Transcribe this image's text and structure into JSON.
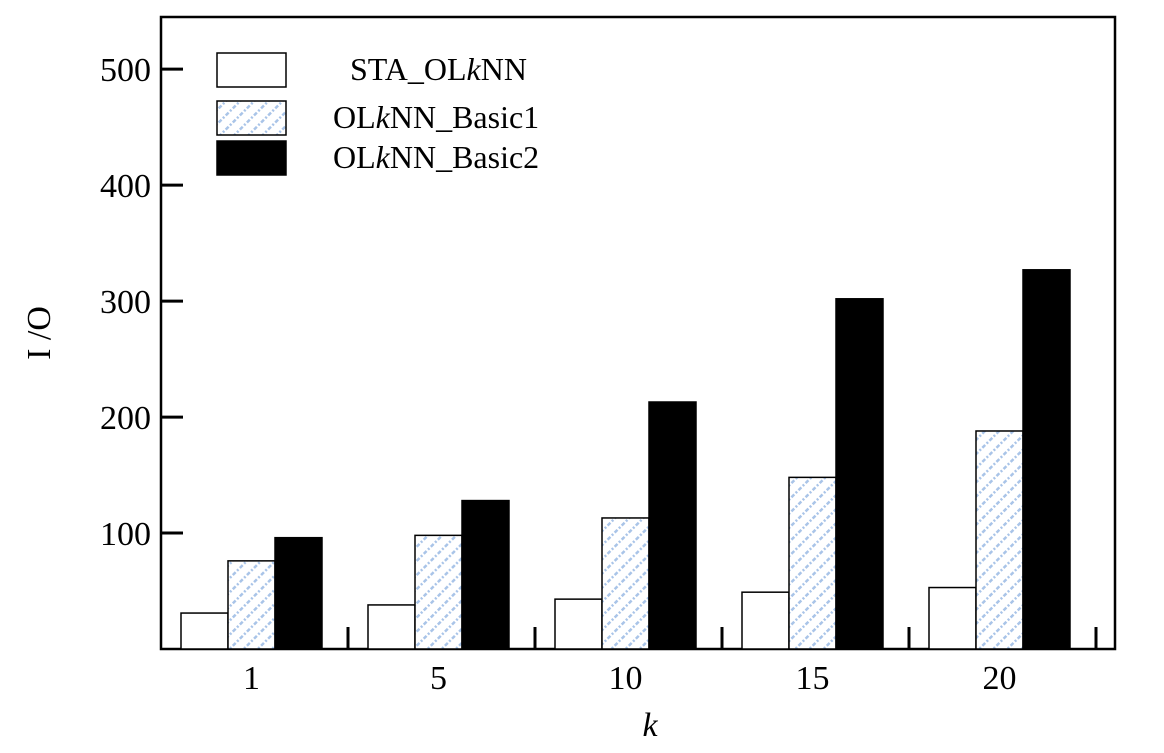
{
  "chart_data": {
    "type": "bar",
    "title": "",
    "xlabel": "k",
    "ylabel": "I /O",
    "categories": [
      "1",
      "5",
      "10",
      "15",
      "20"
    ],
    "yticks": [
      100,
      200,
      300,
      400,
      500
    ],
    "ylim": [
      0,
      545
    ],
    "grid": false,
    "legend_position": "top-left",
    "series": [
      {
        "name": "STA_OLkNN",
        "legend_parts": [
          "STA_OL",
          "k",
          "NN"
        ],
        "pattern": "white",
        "values": [
          31,
          38,
          43,
          49,
          53
        ]
      },
      {
        "name": "OLkNN_Basic1",
        "legend_parts": [
          "OL",
          "k",
          "NN_Basic1"
        ],
        "pattern": "hatch",
        "values": [
          76,
          98,
          113,
          148,
          188
        ]
      },
      {
        "name": "OLkNN_Basic2",
        "legend_parts": [
          "OL",
          "k",
          "NN_Basic2"
        ],
        "pattern": "black",
        "values": [
          96,
          128,
          213,
          302,
          327
        ]
      }
    ],
    "colors": {
      "hatch_stroke": "#a9c4e8",
      "black": "#000000",
      "white": "#ffffff"
    }
  }
}
